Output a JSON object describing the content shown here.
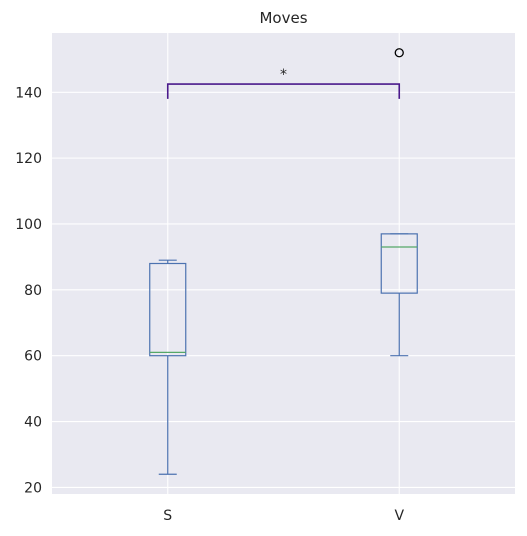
{
  "chart_data": {
    "type": "box",
    "title": "Moves",
    "xlabel": "",
    "ylabel": "",
    "categories": [
      "S",
      "V"
    ],
    "ylim": [
      18,
      158
    ],
    "yticks": [
      20,
      40,
      60,
      80,
      100,
      120,
      140
    ],
    "grid": true,
    "boxes": [
      {
        "category": "S",
        "whisker_low": 24,
        "q1": 60,
        "median": 61,
        "q3": 88,
        "whisker_high": 89,
        "outliers": []
      },
      {
        "category": "V",
        "whisker_low": 60,
        "q1": 79,
        "median": 93,
        "q3": 97,
        "whisker_high": 97,
        "outliers": [
          152
        ]
      }
    ],
    "significance": {
      "from": "S",
      "to": "V",
      "y": 142.5,
      "y_drop": 138,
      "label": "*"
    },
    "colors": {
      "background": "#e9e9f1",
      "grid": "#ffffff",
      "box": "#4c72b0",
      "median": "#55a868",
      "bracket": "#4b1a8c",
      "text": "#262626"
    }
  }
}
